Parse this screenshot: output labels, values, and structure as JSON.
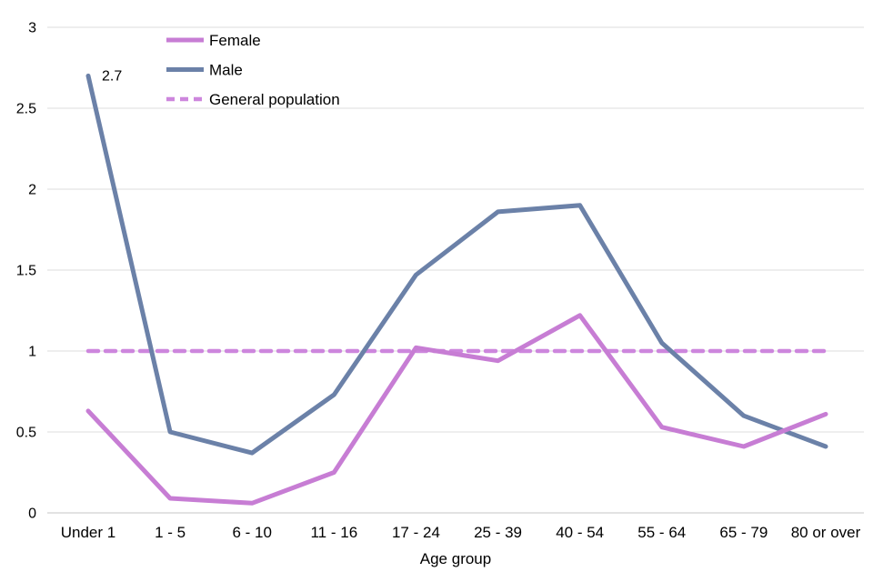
{
  "chart_data": {
    "type": "line",
    "categories": [
      "Under 1",
      "1 - 5",
      "6 - 10",
      "11 - 16",
      "17 - 24",
      "25 - 39",
      "40 - 54",
      "55 - 64",
      "65 - 79",
      "80 or over"
    ],
    "series": [
      {
        "name": "Female",
        "style": "solid",
        "color": "#c77dd4",
        "values": [
          0.63,
          0.09,
          0.06,
          0.25,
          1.02,
          0.94,
          1.22,
          0.53,
          0.41,
          0.61
        ]
      },
      {
        "name": "Male",
        "style": "solid",
        "color": "#6b81a8",
        "values": [
          2.7,
          0.5,
          0.37,
          0.73,
          1.47,
          1.86,
          1.9,
          1.05,
          0.6,
          0.41
        ]
      },
      {
        "name": "General population",
        "style": "dashed",
        "color": "#cd86dd",
        "values": [
          1,
          1,
          1,
          1,
          1,
          1,
          1,
          1,
          1,
          1
        ]
      }
    ],
    "annotations": [
      {
        "text": "2.7",
        "series": "Male",
        "category": "Under 1",
        "value": 2.7
      }
    ],
    "title": "",
    "xlabel": "Age group",
    "ylabel": "",
    "ylim": [
      0,
      3
    ],
    "yticks": [
      0,
      0.5,
      1,
      1.5,
      2,
      2.5,
      3
    ],
    "ytick_labels": [
      "0",
      "0.5",
      "1",
      "1.5",
      "2",
      "2.5",
      "3"
    ],
    "grid": true,
    "legend_position": "top-left-inside",
    "colors": {
      "gridline": "#dcdcdc",
      "axis_line": "#c4c4c4",
      "text": "#000000",
      "background": "#ffffff"
    }
  }
}
